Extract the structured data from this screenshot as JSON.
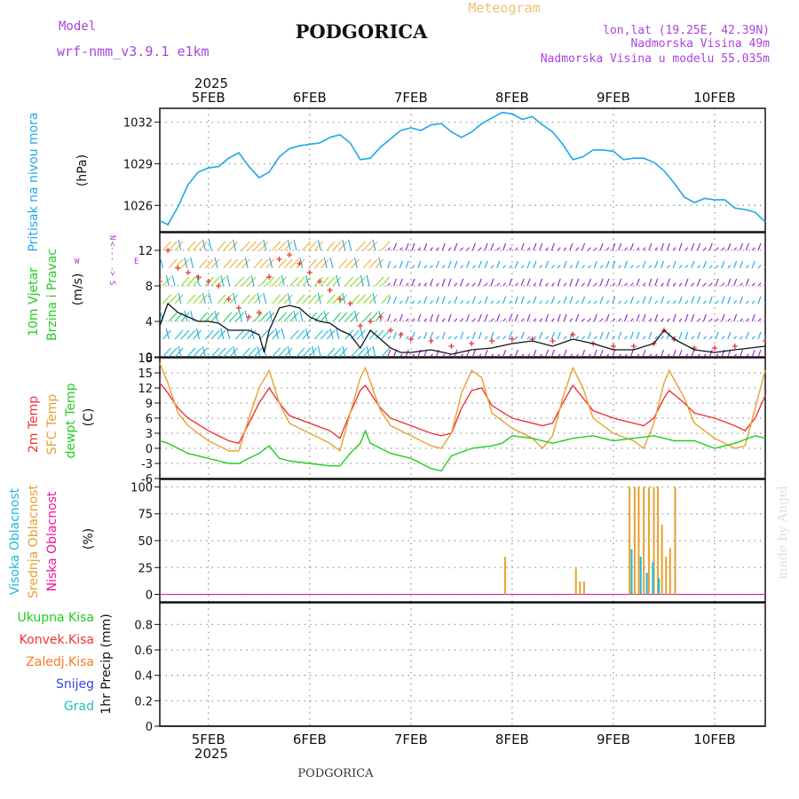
{
  "header": {
    "model_label": "Model",
    "model_name": "wrf-nmm_v3.9.1  e1km",
    "title": "PODGORICA",
    "meteogram_label": "Meteogram",
    "coords": "lon,lat (19.25E, 42.39N)",
    "altitude": "Nadmorska Visina 49m",
    "model_altitude": "Nadmorska Visina u modelu 55.035m"
  },
  "footer": {
    "station": "PODGORICA",
    "watermark": "made by Angel"
  },
  "colors": {
    "pressure": "#1fa8e8",
    "wind_label": "#22cc22",
    "wind_dir": "#aa33cc",
    "t2m": "#ee3333",
    "sfc": "#e8a030",
    "dewpt": "#22cc22",
    "high_cloud": "#1fb8d8",
    "mid_cloud": "#e8a030",
    "low_cloud": "#ee1199",
    "precip_total": "#22cc22",
    "precip_conv": "#ee3333",
    "precip_frozen": "#ff7722",
    "snow": "#3344dd",
    "hail": "#22bbbb"
  },
  "time_axis": {
    "year": "2025",
    "day_labels": [
      "5FEB",
      "6FEB",
      "7FEB",
      "8FEB",
      "9FEB",
      "10FEB"
    ],
    "start_day": 4.52,
    "end_day": 10.5
  },
  "chart_data": [
    {
      "type": "line",
      "id": "pressure",
      "ylabels": [
        "Pritisak na nivou mora",
        "(hPa)"
      ],
      "ylim": [
        1024.1,
        1033.0
      ],
      "yticks": [
        1026,
        1029,
        1032
      ],
      "grid": true,
      "series": [
        {
          "x": [
            4.52,
            4.6,
            4.7,
            4.8,
            4.9,
            5.0,
            5.1,
            5.2,
            5.3,
            5.4,
            5.5,
            5.6,
            5.7,
            5.8,
            5.9,
            6.0,
            6.1,
            6.2,
            6.3,
            6.4,
            6.5,
            6.6,
            6.7,
            6.8,
            6.9,
            7.0,
            7.1,
            7.2,
            7.3,
            7.4,
            7.5,
            7.6,
            7.7,
            7.8,
            7.9,
            8.0,
            8.1,
            8.2,
            8.3,
            8.4,
            8.5,
            8.6,
            8.7,
            8.8,
            8.9,
            9.0,
            9.1,
            9.2,
            9.3,
            9.4,
            9.5,
            9.6,
            9.7,
            9.8,
            9.9,
            10.0,
            10.1,
            10.2,
            10.3,
            10.4,
            10.5
          ],
          "y": [
            1024.9,
            1024.6,
            1025.9,
            1027.5,
            1028.4,
            1028.7,
            1028.8,
            1029.4,
            1029.8,
            1028.8,
            1028.0,
            1028.4,
            1029.5,
            1030.1,
            1030.3,
            1030.4,
            1030.5,
            1030.9,
            1031.1,
            1030.5,
            1029.3,
            1029.4,
            1030.2,
            1030.8,
            1031.4,
            1031.6,
            1031.4,
            1031.8,
            1031.9,
            1031.3,
            1030.9,
            1031.3,
            1031.9,
            1032.3,
            1032.7,
            1032.6,
            1032.2,
            1032.4,
            1031.8,
            1031.3,
            1030.4,
            1029.3,
            1029.5,
            1030.0,
            1030.0,
            1029.9,
            1029.3,
            1029.4,
            1029.4,
            1029.1,
            1028.5,
            1027.6,
            1026.6,
            1026.2,
            1026.5,
            1026.4,
            1026.4,
            1025.8,
            1025.7,
            1025.5,
            1024.8
          ]
        }
      ]
    },
    {
      "type": "line",
      "id": "wind",
      "ylabels": [
        "10m Vjetar",
        "Brzina i Pravac",
        "(m/s)"
      ],
      "direction_legend": [
        "N",
        "<--",
        "-",
        "->",
        "W",
        "E",
        "S"
      ],
      "ylim": [
        0,
        14
      ],
      "yticks": [
        0,
        4,
        8,
        12
      ],
      "grid": true,
      "series": [
        {
          "name": "speed",
          "x": [
            4.52,
            4.6,
            4.7,
            4.8,
            4.9,
            5.0,
            5.1,
            5.2,
            5.3,
            5.4,
            5.5,
            5.55,
            5.6,
            5.7,
            5.8,
            5.9,
            6.0,
            6.1,
            6.2,
            6.3,
            6.4,
            6.5,
            6.6,
            6.7,
            6.8,
            6.9,
            7.0,
            7.2,
            7.4,
            7.6,
            7.8,
            8.0,
            8.2,
            8.4,
            8.6,
            8.8,
            9.0,
            9.2,
            9.4,
            9.5,
            9.6,
            9.8,
            10.0,
            10.2,
            10.5
          ],
          "y": [
            3.5,
            6.0,
            5.0,
            4.5,
            4.0,
            4.0,
            3.8,
            3.0,
            3.0,
            3.0,
            2.5,
            0.5,
            3.0,
            5.5,
            5.8,
            5.5,
            4.5,
            4.0,
            3.8,
            3.0,
            2.5,
            1.0,
            3.0,
            2.0,
            1.0,
            0.5,
            0.5,
            0.8,
            0.3,
            0.8,
            1.0,
            1.5,
            1.8,
            1.2,
            2.0,
            1.5,
            0.8,
            0.8,
            1.5,
            3.0,
            2.0,
            0.8,
            0.5,
            0.8,
            1.2
          ]
        },
        {
          "name": "gust",
          "x": [
            4.52,
            4.6,
            4.7,
            4.8,
            4.9,
            5.0,
            5.1,
            5.2,
            5.3,
            5.4,
            5.5,
            5.6,
            5.7,
            5.8,
            5.9,
            6.0,
            6.1,
            6.2,
            6.3,
            6.4,
            6.5,
            6.6,
            6.7,
            6.8,
            6.9,
            7.0,
            7.2,
            7.4,
            7.6,
            7.8,
            8.0,
            8.2,
            8.4,
            8.6,
            8.8,
            9.0,
            9.2,
            9.4,
            9.5,
            9.6,
            9.8,
            10.0,
            10.2,
            10.5
          ],
          "y": [
            8.5,
            12.0,
            10.0,
            9.5,
            9.0,
            8.5,
            8.0,
            6.5,
            5.5,
            4.5,
            5.0,
            9.0,
            11.0,
            11.5,
            10.5,
            9.5,
            8.5,
            7.5,
            6.5,
            6.0,
            3.5,
            4.0,
            4.5,
            3.0,
            2.5,
            2.0,
            1.8,
            1.2,
            1.5,
            1.8,
            2.0,
            2.0,
            1.8,
            2.5,
            1.5,
            1.2,
            1.2,
            1.5,
            3.0,
            2.0,
            1.0,
            1.0,
            1.2,
            1.8
          ]
        }
      ]
    },
    {
      "type": "line",
      "id": "temperature",
      "ylabels": [
        "2m Temp",
        "SFC Temp",
        "dewpt Temp",
        "(C)"
      ],
      "ylim": [
        -6,
        18
      ],
      "yticks": [
        -6,
        -3,
        0,
        3,
        6,
        9,
        12,
        15,
        18
      ],
      "grid": true,
      "series": [
        {
          "name": "2m Temp",
          "x": [
            4.52,
            4.6,
            4.7,
            4.8,
            5.0,
            5.2,
            5.3,
            5.4,
            5.5,
            5.6,
            5.7,
            5.8,
            6.0,
            6.2,
            6.3,
            6.4,
            6.5,
            6.55,
            6.7,
            6.8,
            7.0,
            7.2,
            7.3,
            7.4,
            7.5,
            7.6,
            7.7,
            7.8,
            8.0,
            8.2,
            8.3,
            8.4,
            8.5,
            8.6,
            8.7,
            8.8,
            9.0,
            9.2,
            9.3,
            9.4,
            9.5,
            9.55,
            9.7,
            9.8,
            10.0,
            10.2,
            10.3,
            10.4,
            10.5
          ],
          "y": [
            13.0,
            11.0,
            8.0,
            6.0,
            3.5,
            1.5,
            1.0,
            5.0,
            9.0,
            12.0,
            9.0,
            6.5,
            5.0,
            3.5,
            2.0,
            7.0,
            11.5,
            12.5,
            8.0,
            6.0,
            4.5,
            3.0,
            2.5,
            3.0,
            8.0,
            11.5,
            12.0,
            8.5,
            6.0,
            5.0,
            4.5,
            5.0,
            9.0,
            12.5,
            10.0,
            7.5,
            6.0,
            5.0,
            4.5,
            6.0,
            10.0,
            11.5,
            9.0,
            7.0,
            6.0,
            4.5,
            3.5,
            6.0,
            10.5
          ]
        },
        {
          "name": "SFC Temp",
          "x": [
            4.52,
            4.6,
            4.7,
            4.8,
            5.0,
            5.2,
            5.3,
            5.4,
            5.5,
            5.6,
            5.7,
            5.8,
            6.0,
            6.2,
            6.3,
            6.4,
            6.5,
            6.55,
            6.7,
            6.8,
            7.0,
            7.2,
            7.3,
            7.4,
            7.5,
            7.6,
            7.7,
            7.8,
            8.0,
            8.2,
            8.3,
            8.4,
            8.5,
            8.6,
            8.7,
            8.8,
            9.0,
            9.2,
            9.3,
            9.4,
            9.5,
            9.55,
            9.7,
            9.8,
            10.0,
            10.2,
            10.3,
            10.4,
            10.5
          ],
          "y": [
            17.0,
            13.0,
            7.0,
            4.5,
            1.5,
            -0.5,
            -0.5,
            6.0,
            12.0,
            15.5,
            9.0,
            5.0,
            3.0,
            1.0,
            -0.5,
            7.0,
            14.0,
            16.0,
            7.5,
            4.5,
            2.5,
            0.5,
            0.0,
            3.0,
            11.0,
            15.5,
            14.0,
            7.0,
            4.0,
            2.0,
            0.0,
            2.5,
            10.0,
            16.0,
            12.0,
            6.0,
            3.0,
            1.5,
            0.0,
            5.0,
            13.0,
            15.5,
            10.0,
            5.0,
            2.0,
            0.0,
            0.5,
            8.0,
            15.5
          ]
        },
        {
          "name": "dewpt Temp",
          "x": [
            4.52,
            4.6,
            4.7,
            4.8,
            5.0,
            5.2,
            5.3,
            5.4,
            5.5,
            5.6,
            5.7,
            5.8,
            6.0,
            6.2,
            6.3,
            6.4,
            6.5,
            6.55,
            6.6,
            6.7,
            6.8,
            7.0,
            7.2,
            7.3,
            7.4,
            7.6,
            7.8,
            7.9,
            8.0,
            8.2,
            8.4,
            8.6,
            8.8,
            9.0,
            9.2,
            9.4,
            9.5,
            9.6,
            9.8,
            10.0,
            10.2,
            10.4,
            10.5
          ],
          "y": [
            1.5,
            1.0,
            0.0,
            -1.0,
            -2.0,
            -3.0,
            -3.0,
            -2.0,
            -1.0,
            0.5,
            -2.0,
            -2.5,
            -3.0,
            -3.5,
            -3.5,
            -1.0,
            1.0,
            3.5,
            1.0,
            0.0,
            -1.0,
            -2.0,
            -4.0,
            -4.5,
            -1.5,
            0.0,
            0.5,
            1.0,
            2.5,
            2.0,
            1.0,
            2.0,
            2.5,
            1.5,
            2.0,
            2.5,
            2.0,
            1.5,
            1.5,
            0.0,
            1.0,
            2.5,
            2.0
          ]
        }
      ]
    },
    {
      "type": "bar",
      "id": "cloud",
      "ylabels": [
        "Visoka Oblacnost",
        "Srednja Oblacnost",
        "Niska Oblacnost",
        "(%)"
      ],
      "ylim": [
        -7,
        107
      ],
      "yticks": [
        0,
        25,
        50,
        75,
        100
      ],
      "grid": true,
      "series": [
        {
          "name": "Srednja Oblacnost",
          "x": [
            7.93,
            8.63,
            8.67,
            8.71,
            9.16,
            9.21,
            9.25,
            9.3,
            9.35,
            9.4,
            9.44,
            9.48,
            9.52,
            9.56,
            9.61
          ],
          "values": [
            35,
            24,
            12,
            12,
            100,
            100,
            100,
            100,
            100,
            100,
            100,
            65,
            35,
            43,
            100
          ]
        },
        {
          "name": "Visoka Oblacnost",
          "x": [
            9.18,
            9.27,
            9.33,
            9.39,
            9.45
          ],
          "values": [
            42,
            35,
            20,
            30,
            15
          ]
        }
      ]
    },
    {
      "type": "line",
      "id": "precip",
      "ylabels": [
        "1hr Precip (mm)"
      ],
      "legend": [
        "Ukupna Kisa",
        "Konvek.Kisa",
        "Zaledj.Kisa",
        "Snijeg",
        "Grad"
      ],
      "ylim": [
        0,
        0.97
      ],
      "yticks": [
        0,
        0.2,
        0.4,
        0.6,
        0.8
      ],
      "ytick_labels": [
        "0",
        "0.2",
        "0.4",
        "0.6",
        "0.8"
      ],
      "grid": true,
      "series": []
    }
  ]
}
